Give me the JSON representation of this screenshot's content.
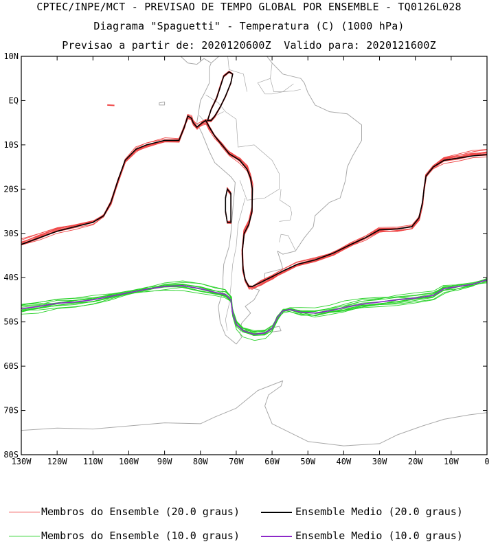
{
  "header": {
    "title": "CPTEC/INPE/MCT - PREVISAO DE TEMPO GLOBAL POR ENSEMBLE - TQ0126L028",
    "subtitle": "Diagrama \"Spaguetti\" - Temperatura (C) (1000 hPa)",
    "dates": "Previsao a partir de: 2020120600Z  Valido para: 2020121600Z"
  },
  "colors": {
    "members20": "#f04848",
    "mean20": "#000000",
    "members10": "#28d228",
    "mean10": "#8c28c8",
    "coast": "#a8a8a8"
  },
  "legend": [
    {
      "label": "Membros do Ensemble (20.0 graus)",
      "color": "#f04848",
      "style": "thin"
    },
    {
      "label": "Ensemble Medio (20.0 graus)",
      "color": "#000000",
      "style": "thick"
    },
    {
      "label": "Membros do Ensemble (10.0 graus)",
      "color": "#28d228",
      "style": "thin"
    },
    {
      "label": "Ensemble Medio (10.0 graus)",
      "color": "#8c28c8",
      "style": "thick"
    }
  ],
  "chart_data": {
    "type": "line",
    "title": "Diagrama \"Spaguetti\" - Temperatura (C) (1000 hPa)",
    "xlim": [
      -130,
      0
    ],
    "ylim": [
      -80,
      10
    ],
    "x_ticks": [
      {
        "value": -130,
        "label": "130W"
      },
      {
        "value": -120,
        "label": "120W"
      },
      {
        "value": -110,
        "label": "110W"
      },
      {
        "value": -100,
        "label": "100W"
      },
      {
        "value": -90,
        "label": "90W"
      },
      {
        "value": -80,
        "label": "80W"
      },
      {
        "value": -70,
        "label": "70W"
      },
      {
        "value": -60,
        "label": "60W"
      },
      {
        "value": -50,
        "label": "50W"
      },
      {
        "value": -40,
        "label": "40W"
      },
      {
        "value": -30,
        "label": "30W"
      },
      {
        "value": -20,
        "label": "20W"
      },
      {
        "value": -10,
        "label": "10W"
      },
      {
        "value": 0,
        "label": "0"
      }
    ],
    "y_ticks": [
      {
        "value": 10,
        "label": "10N"
      },
      {
        "value": 0,
        "label": "EQ"
      },
      {
        "value": -10,
        "label": "10S"
      },
      {
        "value": -20,
        "label": "20S"
      },
      {
        "value": -30,
        "label": "30S"
      },
      {
        "value": -40,
        "label": "40S"
      },
      {
        "value": -50,
        "label": "50S"
      },
      {
        "value": -60,
        "label": "60S"
      },
      {
        "value": -70,
        "label": "70S"
      },
      {
        "value": -80,
        "label": "80S"
      }
    ],
    "series": [
      {
        "name": "Ensemble Medio (20.0 graus)",
        "segments": [
          [
            [
              -130,
              -32.5
            ],
            [
              -125,
              -31
            ],
            [
              -120,
              -29.5
            ],
            [
              -115,
              -28.5
            ],
            [
              -110,
              -27.5
            ],
            [
              -107,
              -26
            ],
            [
              -105,
              -23
            ],
            [
              -103,
              -18
            ],
            [
              -101,
              -13.5
            ],
            [
              -98,
              -11
            ],
            [
              -95,
              -10
            ],
            [
              -90,
              -9
            ],
            [
              -86,
              -9
            ],
            [
              -84.5,
              -6
            ],
            [
              -83.5,
              -3.5
            ],
            [
              -82.5,
              -4
            ],
            [
              -82,
              -5
            ],
            [
              -81,
              -6
            ],
            [
              -79.5,
              -5
            ],
            [
              -78.5,
              -4.5
            ],
            [
              -77.5,
              -6
            ],
            [
              -76,
              -8
            ],
            [
              -74,
              -10
            ],
            [
              -72,
              -12
            ],
            [
              -69,
              -13.5
            ],
            [
              -67,
              -15.5
            ],
            [
              -66,
              -17.5
            ],
            [
              -65.5,
              -20
            ],
            [
              -65.6,
              -25
            ],
            [
              -66.5,
              -28
            ],
            [
              -67.8,
              -30
            ],
            [
              -68.3,
              -34
            ],
            [
              -68.1,
              -38
            ],
            [
              -67.5,
              -40.5
            ],
            [
              -66.5,
              -42
            ],
            [
              -65.5,
              -42
            ],
            [
              -63,
              -41
            ],
            [
              -60,
              -39.8
            ],
            [
              -57,
              -38.5
            ],
            [
              -53,
              -37
            ],
            [
              -48,
              -36
            ],
            [
              -43,
              -34.5
            ],
            [
              -38,
              -32.5
            ],
            [
              -34,
              -31
            ],
            [
              -30,
              -29.2
            ],
            [
              -25,
              -29
            ],
            [
              -21,
              -28.5
            ],
            [
              -19,
              -26.5
            ],
            [
              -18,
              -23
            ],
            [
              -17.5,
              -19.5
            ],
            [
              -17,
              -17
            ],
            [
              -15,
              -15
            ],
            [
              -12,
              -13.5
            ],
            [
              -8,
              -13
            ],
            [
              -4,
              -12.5
            ],
            [
              0,
              -12.2
            ]
          ],
          [
            [
              -78,
              -4.5
            ],
            [
              -77,
              -2
            ],
            [
              -75.5,
              0.5
            ],
            [
              -74.5,
              3
            ],
            [
              -73.5,
              5.5
            ],
            [
              -72,
              6.5
            ],
            [
              -71,
              6
            ],
            [
              -71.5,
              4
            ],
            [
              -73,
              1
            ],
            [
              -74.5,
              -1.5
            ],
            [
              -76,
              -3.5
            ],
            [
              -77,
              -4.5
            ],
            [
              -78,
              -4.5
            ]
          ],
          [
            [
              -72.5,
              -20
            ],
            [
              -71.5,
              -21
            ],
            [
              -71.5,
              -24
            ],
            [
              -71.5,
              -27.5
            ],
            [
              -72.5,
              -27.5
            ],
            [
              -73,
              -25
            ],
            [
              -73,
              -22
            ],
            [
              -72.5,
              -20
            ]
          ]
        ]
      },
      {
        "name": "Ensemble Medio (10.0 graus)",
        "segments": [
          [
            [
              -130,
              -47
            ],
            [
              -125,
              -46.5
            ],
            [
              -120,
              -45.8
            ],
            [
              -115,
              -45.5
            ],
            [
              -110,
              -45
            ],
            [
              -105,
              -44.2
            ],
            [
              -100,
              -43.4
            ],
            [
              -95,
              -42.6
            ],
            [
              -90,
              -42
            ],
            [
              -85,
              -41.8
            ],
            [
              -80,
              -42.5
            ],
            [
              -76,
              -43.3
            ],
            [
              -73,
              -43.8
            ],
            [
              -71.5,
              -45
            ],
            [
              -71,
              -48
            ],
            [
              -70,
              -50.5
            ],
            [
              -68,
              -52
            ],
            [
              -65,
              -52.8
            ],
            [
              -62,
              -52.5
            ],
            [
              -60,
              -51.5
            ],
            [
              -58.5,
              -49
            ],
            [
              -57,
              -47.5
            ],
            [
              -55,
              -47.2
            ],
            [
              -52,
              -47.8
            ],
            [
              -48,
              -48
            ],
            [
              -44,
              -47.5
            ],
            [
              -40,
              -46.8
            ],
            [
              -35,
              -46
            ],
            [
              -30,
              -45.5
            ],
            [
              -25,
              -45
            ],
            [
              -20,
              -44.6
            ],
            [
              -15,
              -44
            ],
            [
              -12,
              -42.5
            ],
            [
              -8,
              -42
            ],
            [
              -4,
              -41.5
            ],
            [
              0,
              -40.5
            ]
          ]
        ]
      }
    ]
  }
}
